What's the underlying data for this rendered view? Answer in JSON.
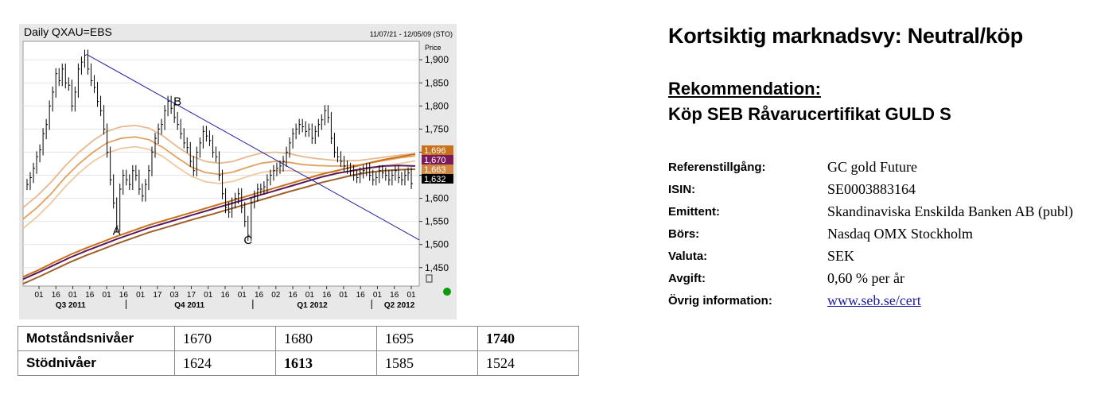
{
  "chart_data": {
    "type": "line",
    "title": "Daily QXAU=EBS",
    "date_range": "11/07/21 - 12/05/09 (STO)",
    "ylabel": "Price",
    "ylim": [
      1410,
      1940
    ],
    "y_ticks": [
      1450,
      1500,
      1550,
      1600,
      1650,
      1700,
      1750,
      1800,
      1850,
      1900
    ],
    "y_tick_labels": [
      "1,450",
      "1,500",
      "1,550",
      "1,600",
      "1,650",
      "1,700",
      "1,750",
      "1,800",
      "1,850",
      "1,900"
    ],
    "x_tick_labels": [
      "01",
      "16",
      "01",
      "16",
      "01",
      "16",
      "01",
      "17",
      "03",
      "17",
      "01",
      "16",
      "01",
      "16",
      "02",
      "16",
      "01",
      "16",
      "01",
      "16",
      "01",
      "16",
      "01"
    ],
    "quarter_labels": [
      "Q3 2011",
      "Q4 2011",
      "Q1 2012",
      "Q2 2012"
    ],
    "price_labels": [
      {
        "text": "1,696",
        "color": "#c8701a"
      },
      {
        "text": "1,670",
        "color": "#7a1a5a"
      },
      {
        "text": "1,663",
        "color": "#d08840"
      },
      {
        "text": "1,632",
        "color": "#000000"
      }
    ],
    "price_series": [
      1630,
      1645,
      1665,
      1690,
      1705,
      1740,
      1760,
      1800,
      1830,
      1870,
      1855,
      1880,
      1850,
      1845,
      1800,
      1830,
      1880,
      1895,
      1910,
      1880,
      1855,
      1840,
      1810,
      1790,
      1750,
      1700,
      1640,
      1590,
      1540,
      1620,
      1650,
      1640,
      1630,
      1660,
      1650,
      1620,
      1605,
      1630,
      1660,
      1700,
      1730,
      1750,
      1760,
      1790,
      1810,
      1795,
      1775,
      1760,
      1740,
      1720,
      1710,
      1680,
      1660,
      1700,
      1720,
      1745,
      1735,
      1725,
      1700,
      1690,
      1650,
      1610,
      1580,
      1570,
      1590,
      1600,
      1610,
      1580,
      1550,
      1520,
      1590,
      1605,
      1620,
      1620,
      1625,
      1640,
      1650,
      1660,
      1665,
      1670,
      1680,
      1700,
      1720,
      1740,
      1750,
      1760,
      1755,
      1745,
      1750,
      1730,
      1745,
      1760,
      1770,
      1790,
      1775,
      1730,
      1700,
      1690,
      1680,
      1670,
      1665,
      1660,
      1650,
      1645,
      1655,
      1660,
      1665,
      1650,
      1640,
      1645,
      1660,
      1655,
      1650,
      1640,
      1650,
      1660,
      1645,
      1640,
      1650,
      1655,
      1632
    ],
    "ma_series": [
      {
        "name": "ma-upper-band",
        "color": "#e8b890",
        "values": [
          1580,
          1605,
          1635,
          1670,
          1700,
          1725,
          1745,
          1755,
          1758,
          1752,
          1735,
          1712,
          1692,
          1680,
          1676,
          1680,
          1690,
          1698,
          1700,
          1697,
          1690,
          1686,
          1683,
          1681,
          1682,
          1686,
          1690,
          1694,
          1697
        ]
      },
      {
        "name": "ma-middle",
        "color": "#e0a060",
        "values": [
          1555,
          1580,
          1610,
          1645,
          1675,
          1700,
          1720,
          1730,
          1733,
          1727,
          1710,
          1688,
          1668,
          1656,
          1652,
          1657,
          1667,
          1676,
          1680,
          1678,
          1673,
          1671,
          1670,
          1670,
          1672,
          1678,
          1683,
          1688,
          1692
        ]
      },
      {
        "name": "ma-lower-band",
        "color": "#f0c8a0",
        "values": [
          1535,
          1560,
          1590,
          1625,
          1655,
          1680,
          1698,
          1708,
          1712,
          1706,
          1690,
          1668,
          1648,
          1636,
          1632,
          1637,
          1647,
          1656,
          1660,
          1660,
          1657,
          1656,
          1656,
          1657,
          1660,
          1666,
          1671,
          1676,
          1681
        ]
      },
      {
        "name": "ma-long-orange",
        "color": "#c8701a",
        "values": [
          1430,
          1445,
          1462,
          1478,
          1492,
          1505,
          1518,
          1530,
          1542,
          1552,
          1562,
          1572,
          1582,
          1592,
          1602,
          1612,
          1622,
          1632,
          1642,
          1652,
          1660,
          1668,
          1676,
          1684,
          1690,
          1696
        ]
      },
      {
        "name": "ma-long-purple",
        "color": "#5a1a5a",
        "values": [
          1425,
          1440,
          1456,
          1472,
          1486,
          1499,
          1512,
          1524,
          1536,
          1546,
          1556,
          1566,
          1576,
          1586,
          1596,
          1606,
          1616,
          1626,
          1636,
          1646,
          1654,
          1660,
          1666,
          1670,
          1671,
          1670
        ]
      },
      {
        "name": "ma-long-brown",
        "color": "#a0602a",
        "values": [
          1415,
          1430,
          1446,
          1462,
          1476,
          1489,
          1502,
          1514,
          1526,
          1536,
          1546,
          1556,
          1565,
          1575,
          1585,
          1595,
          1605,
          1615,
          1624,
          1634,
          1642,
          1650,
          1656,
          1660,
          1662,
          1663
        ]
      }
    ],
    "trendline": {
      "x0": 0.16,
      "y0": 1912,
      "x1": 1.0,
      "y1": 1510
    },
    "annotations": [
      {
        "text": "A",
        "at_index": 28,
        "value": 1530
      },
      {
        "text": "B",
        "at_index": 47,
        "value": 1810
      },
      {
        "text": "C",
        "at_index": 69,
        "value": 1510
      }
    ]
  },
  "levels_table": {
    "rows": [
      {
        "label": "Motståndsnivåer",
        "values": [
          "1670",
          "1680",
          "1695",
          "1740"
        ],
        "bold": [
          false,
          false,
          false,
          true
        ]
      },
      {
        "label": "Stödnivåer",
        "values": [
          "1624",
          "1613",
          "1585",
          "1524"
        ],
        "bold": [
          false,
          true,
          false,
          false
        ]
      }
    ]
  },
  "headline": "Kortsiktig marknadsvy: Neutral/köp",
  "recommendation": {
    "heading": "Rekommendation:",
    "text": "Köp SEB Råvarucertifikat GULD S"
  },
  "info": [
    {
      "label": "Referenstillgång:",
      "value": "GC gold Future"
    },
    {
      "label": "ISIN:",
      "value": "SE0003883164"
    },
    {
      "label": "Emittent:",
      "value": "Skandinaviska Enskilda Banken AB (publ)"
    },
    {
      "label": "Börs:",
      "value": "Nasdaq OMX Stockholm"
    },
    {
      "label": "Valuta:",
      "value": "SEK"
    },
    {
      "label": "Avgift:",
      "value": "0,60 % per år"
    },
    {
      "label": "Övrig information:",
      "value": "www.seb.se/cert",
      "link": true
    }
  ]
}
